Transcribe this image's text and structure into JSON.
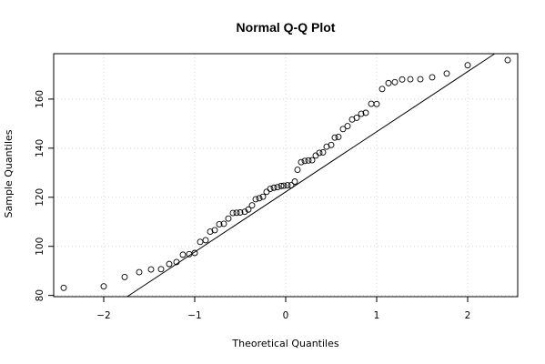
{
  "chart_data": {
    "type": "scatter",
    "title": "Normal Q-Q Plot",
    "xlabel": "Theoretical Quantiles",
    "ylabel": "Sample Quantiles",
    "xlim": [
      -2.55,
      2.55
    ],
    "ylim": [
      79.5,
      178.5
    ],
    "x_ticks": [
      -2,
      -1,
      0,
      1,
      2
    ],
    "y_ticks": [
      80,
      100,
      120,
      140,
      160
    ],
    "grid": true,
    "reference_line": {
      "slope": 24.5,
      "intercept": 122.2
    },
    "points": [
      [
        -2.44,
        83.1
      ],
      [
        -2.0,
        83.7
      ],
      [
        -1.77,
        87.5
      ],
      [
        -1.61,
        89.5
      ],
      [
        -1.48,
        90.6
      ],
      [
        -1.37,
        90.7
      ],
      [
        -1.28,
        92.8
      ],
      [
        -1.2,
        93.6
      ],
      [
        -1.13,
        96.6
      ],
      [
        -1.06,
        96.8
      ],
      [
        -1.0,
        97.3
      ],
      [
        -0.94,
        101.8
      ],
      [
        -0.88,
        102.5
      ],
      [
        -0.83,
        106.0
      ],
      [
        -0.78,
        106.6
      ],
      [
        -0.73,
        109.0
      ],
      [
        -0.68,
        109.2
      ],
      [
        -0.63,
        111.3
      ],
      [
        -0.58,
        113.6
      ],
      [
        -0.54,
        113.7
      ],
      [
        -0.5,
        113.8
      ],
      [
        -0.45,
        114.1
      ],
      [
        -0.41,
        115.0
      ],
      [
        -0.37,
        116.7
      ],
      [
        -0.33,
        119.2
      ],
      [
        -0.29,
        119.6
      ],
      [
        -0.25,
        120.2
      ],
      [
        -0.21,
        122.2
      ],
      [
        -0.17,
        123.4
      ],
      [
        -0.13,
        123.9
      ],
      [
        -0.09,
        124.1
      ],
      [
        -0.05,
        124.6
      ],
      [
        -0.02,
        124.7
      ],
      [
        0.02,
        124.9
      ],
      [
        0.06,
        124.9
      ],
      [
        0.1,
        126.4
      ],
      [
        0.13,
        131.2
      ],
      [
        0.17,
        134.3
      ],
      [
        0.21,
        134.8
      ],
      [
        0.25,
        135.0
      ],
      [
        0.29,
        135.1
      ],
      [
        0.33,
        137.0
      ],
      [
        0.37,
        138.1
      ],
      [
        0.41,
        138.3
      ],
      [
        0.45,
        140.6
      ],
      [
        0.5,
        141.3
      ],
      [
        0.54,
        144.3
      ],
      [
        0.58,
        144.6
      ],
      [
        0.63,
        147.8
      ],
      [
        0.68,
        149.0
      ],
      [
        0.73,
        151.7
      ],
      [
        0.78,
        152.4
      ],
      [
        0.83,
        154.0
      ],
      [
        0.88,
        154.4
      ],
      [
        0.94,
        158.1
      ],
      [
        1.0,
        158.0
      ],
      [
        1.06,
        164.1
      ],
      [
        1.13,
        166.5
      ],
      [
        1.2,
        166.9
      ],
      [
        1.28,
        168.0
      ],
      [
        1.37,
        168.1
      ],
      [
        1.48,
        168.1
      ],
      [
        1.61,
        168.9
      ],
      [
        1.77,
        170.4
      ],
      [
        2.0,
        173.8
      ],
      [
        2.44,
        175.9
      ]
    ]
  }
}
